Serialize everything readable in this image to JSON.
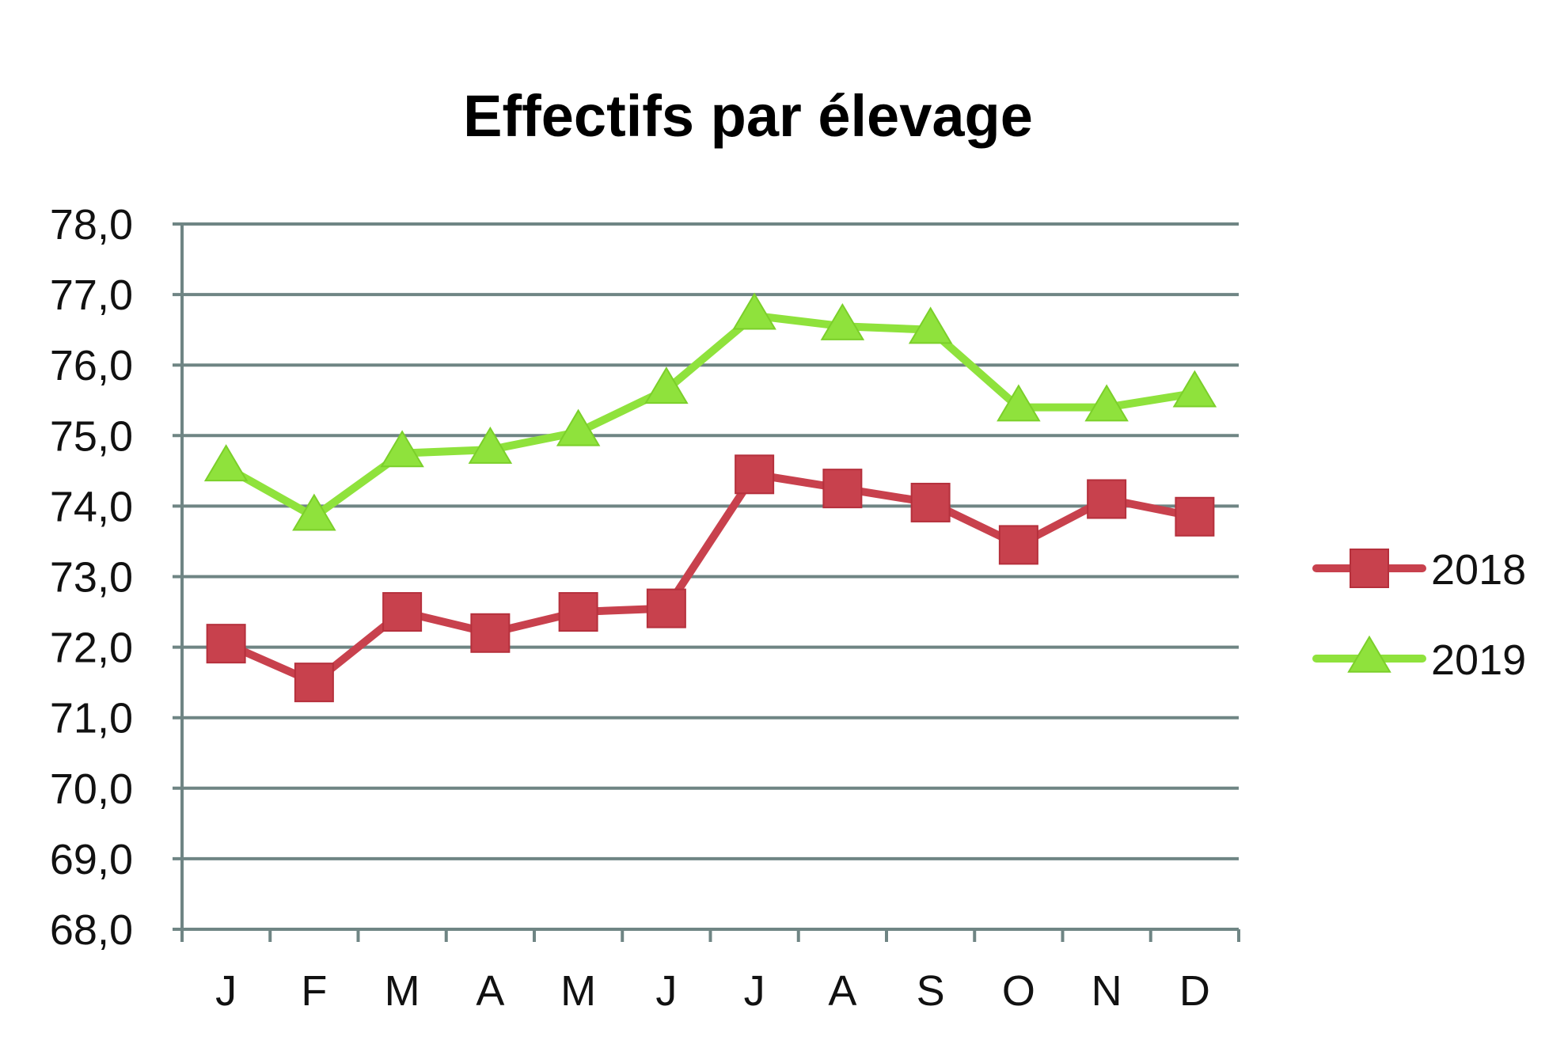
{
  "chart_data": {
    "type": "line",
    "title": "Effectifs par élevage",
    "xlabel": "",
    "ylabel": "",
    "categories": [
      "J",
      "F",
      "M",
      "A",
      "M",
      "J",
      "J",
      "A",
      "S",
      "O",
      "N",
      "D"
    ],
    "ylim": [
      68.0,
      78.0
    ],
    "yticks": [
      "68,0",
      "69,0",
      "70,0",
      "71,0",
      "72,0",
      "73,0",
      "74,0",
      "75,0",
      "76,0",
      "77,0",
      "78,0"
    ],
    "grid": true,
    "legend_position": "right",
    "series": [
      {
        "name": "2018",
        "color": "#c8414d",
        "marker": "square",
        "values": [
          72.05,
          71.5,
          72.5,
          72.2,
          72.5,
          72.55,
          74.45,
          74.25,
          74.05,
          73.45,
          74.1,
          73.85
        ]
      },
      {
        "name": "2019",
        "color": "#8fe23c",
        "marker": "triangle",
        "values": [
          74.55,
          73.85,
          74.75,
          74.8,
          75.05,
          75.65,
          76.7,
          76.55,
          76.5,
          75.4,
          75.4,
          75.6
        ]
      }
    ],
    "colors": {
      "grid": "#6f8584",
      "axis": "#6f8584"
    }
  }
}
